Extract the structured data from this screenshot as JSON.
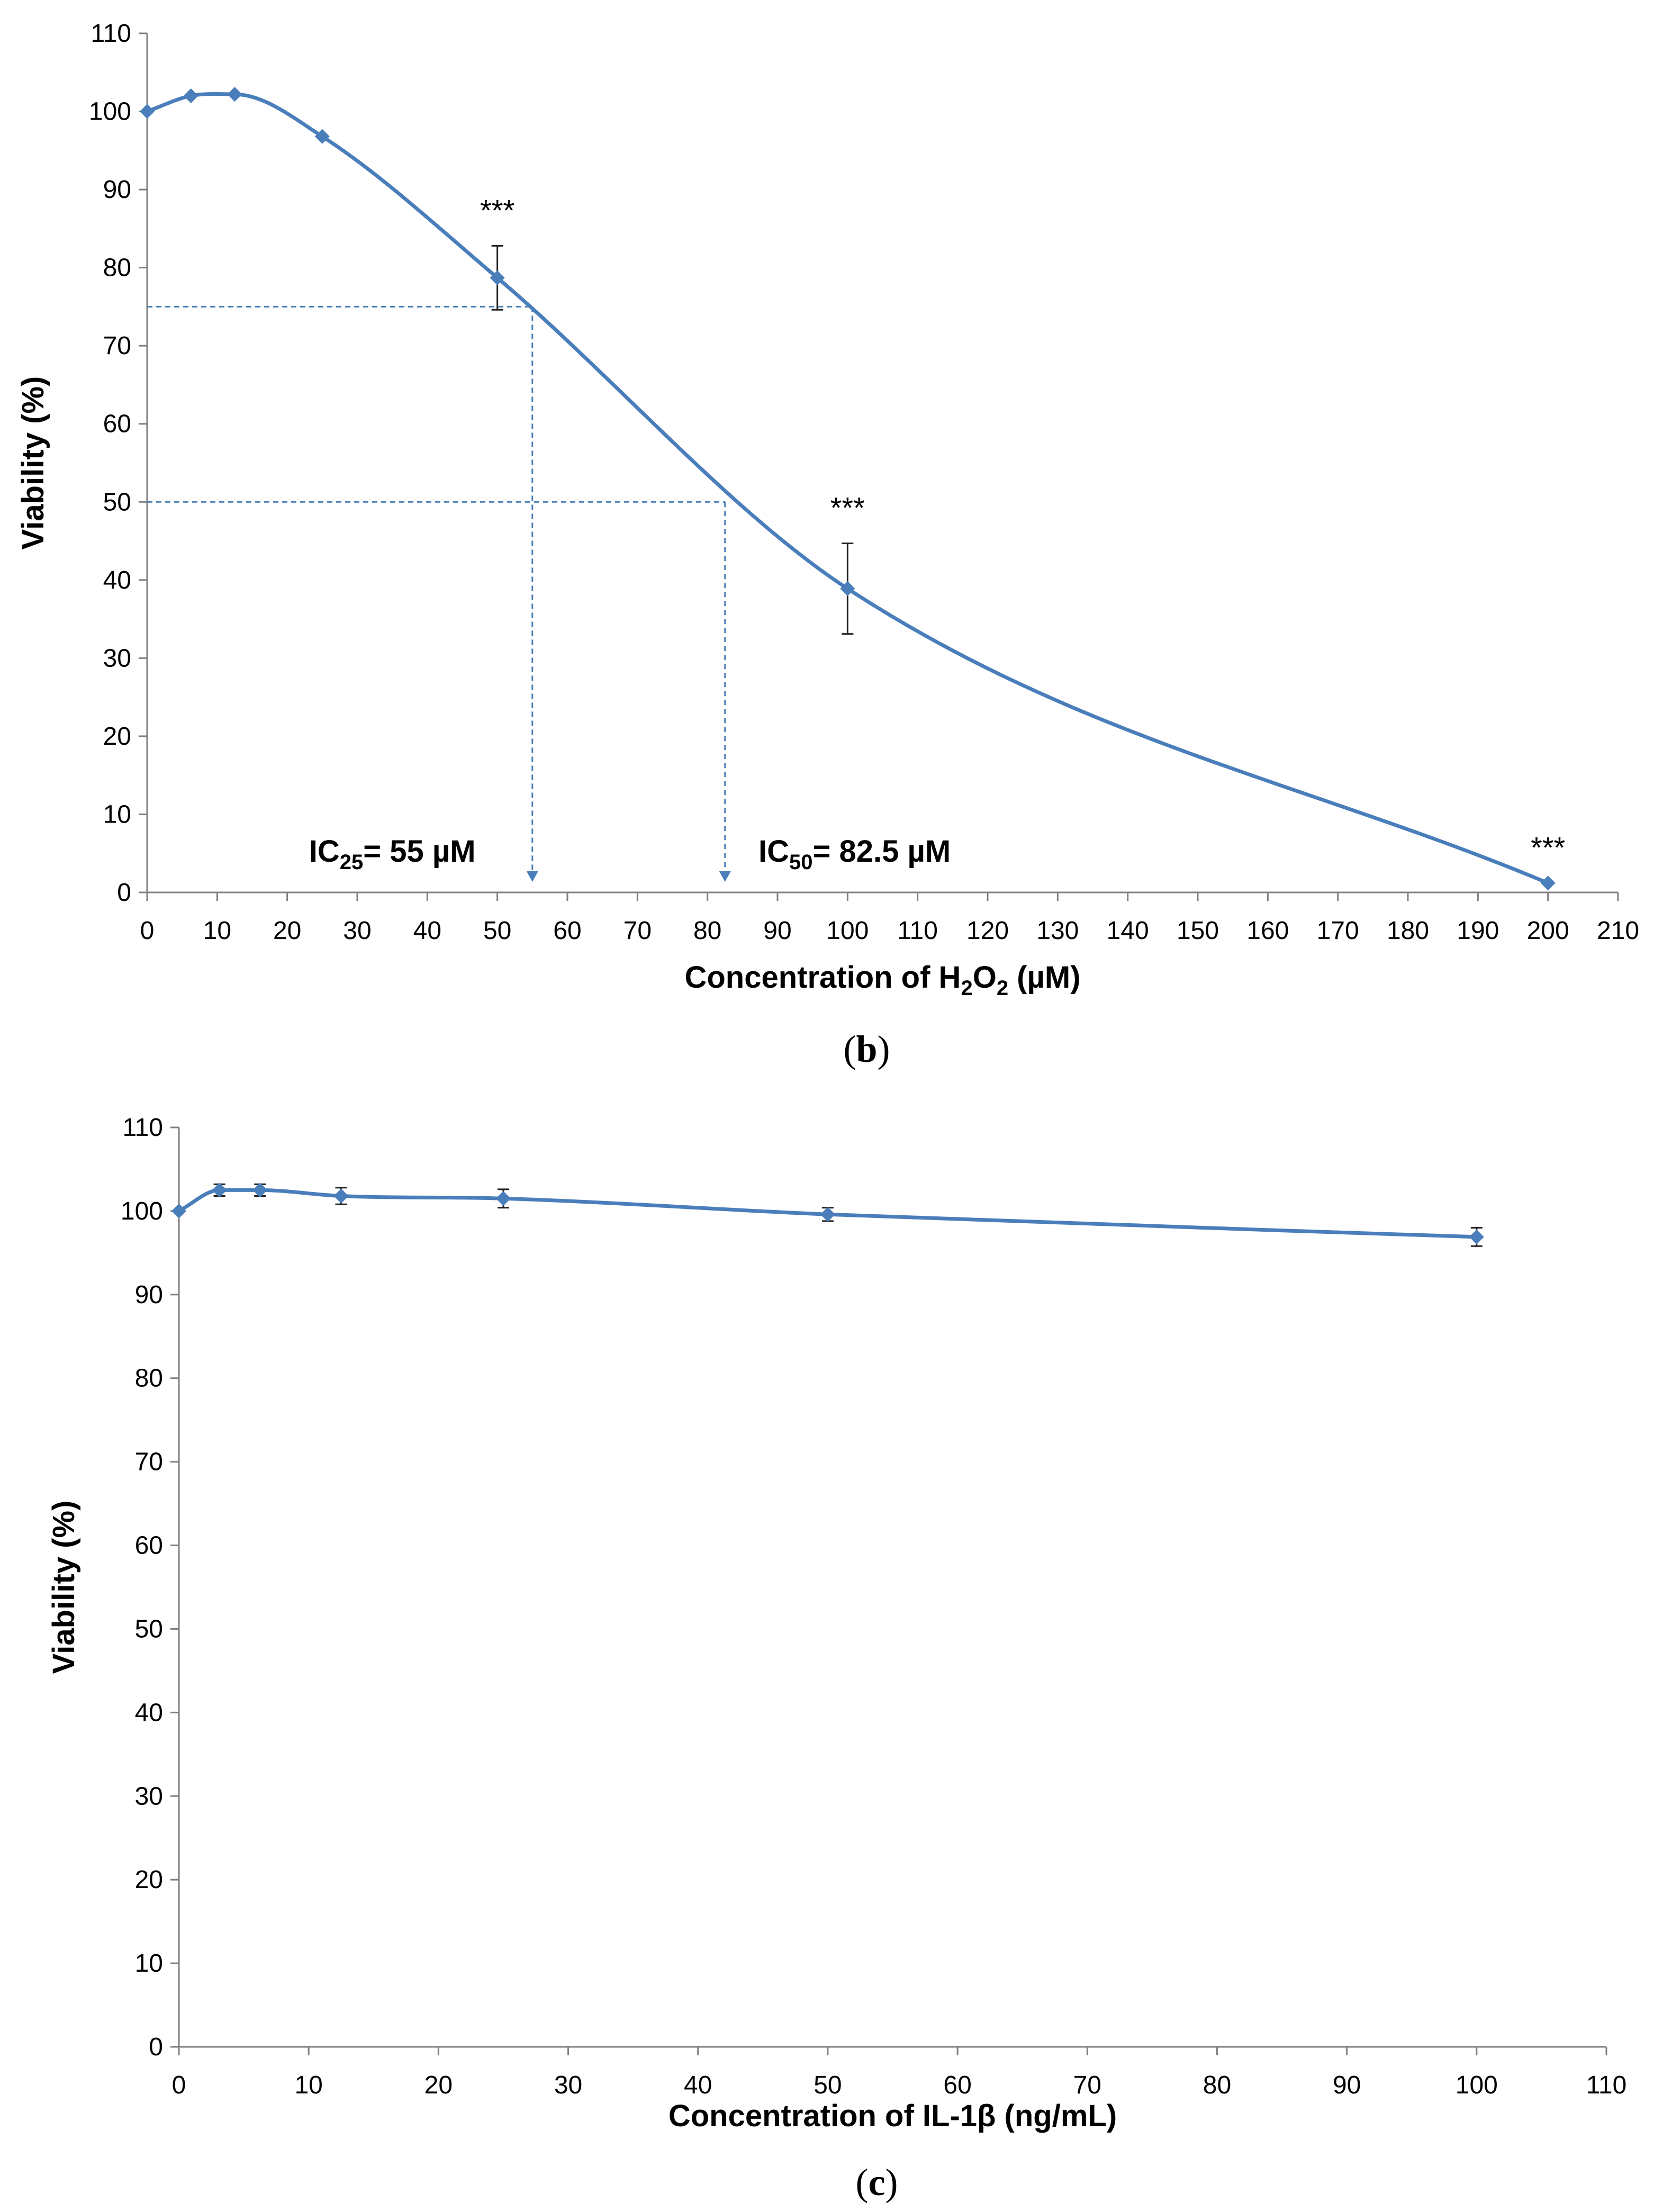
{
  "colors": {
    "series": "#4A7EBB",
    "axis": "#7f7f7f",
    "text": "#000000"
  },
  "chart_data": [
    {
      "type": "line",
      "panel_label": "b",
      "xlabel_prefix": "Concentration of H",
      "xlabel_sub1": "2",
      "xlabel_mid": "O",
      "xlabel_sub2": "2",
      "xlabel_suffix": " (µM)",
      "ylabel": "Viability (%)",
      "xlim": [
        0,
        210
      ],
      "ylim": [
        0,
        110
      ],
      "x_ticks": [
        0,
        10,
        20,
        30,
        40,
        50,
        60,
        70,
        80,
        90,
        100,
        110,
        120,
        130,
        140,
        150,
        160,
        170,
        180,
        190,
        200,
        210
      ],
      "y_ticks": [
        0,
        10,
        20,
        30,
        40,
        50,
        60,
        70,
        80,
        90,
        100,
        110
      ],
      "series": [
        {
          "name": "H2O2",
          "x": [
            0,
            6.25,
            12.5,
            25,
            50,
            100,
            200
          ],
          "y": [
            100,
            102,
            102.2,
            96.8,
            78.7,
            38.9,
            1.2
          ],
          "err": [
            0,
            0,
            0,
            0,
            4.1,
            5.8,
            0
          ],
          "stars": [
            "",
            "",
            "",
            "",
            "***",
            "***",
            "***"
          ]
        }
      ],
      "reference_lines": [
        {
          "y": 75,
          "x": 55
        },
        {
          "y": 50,
          "x": 82.5
        }
      ],
      "annotations": [
        {
          "prefix": "IC",
          "sub": "25",
          "suffix": "= 55 µM",
          "x": 35
        },
        {
          "prefix": "IC",
          "sub": "50",
          "suffix": "= 82.5 µM",
          "x": 101
        }
      ]
    },
    {
      "type": "line",
      "panel_label": "c",
      "xlabel": "Concentration of IL-1β (ng/mL)",
      "ylabel": "Viability (%)",
      "xlim": [
        0,
        110
      ],
      "ylim": [
        0,
        110
      ],
      "x_ticks": [
        0,
        10,
        20,
        30,
        40,
        50,
        60,
        70,
        80,
        90,
        100,
        110
      ],
      "y_ticks": [
        0,
        10,
        20,
        30,
        40,
        50,
        60,
        70,
        80,
        90,
        100,
        110
      ],
      "series": [
        {
          "name": "IL-1β",
          "x": [
            0,
            3.125,
            6.25,
            12.5,
            25,
            50,
            100
          ],
          "y": [
            100,
            102.5,
            102.5,
            101.8,
            101.5,
            99.6,
            96.9
          ],
          "err": [
            0,
            0.7,
            0.7,
            1.0,
            1.1,
            0.8,
            1.1
          ],
          "stars": [
            "",
            "",
            "",
            "",
            "",
            "",
            ""
          ]
        }
      ]
    }
  ]
}
